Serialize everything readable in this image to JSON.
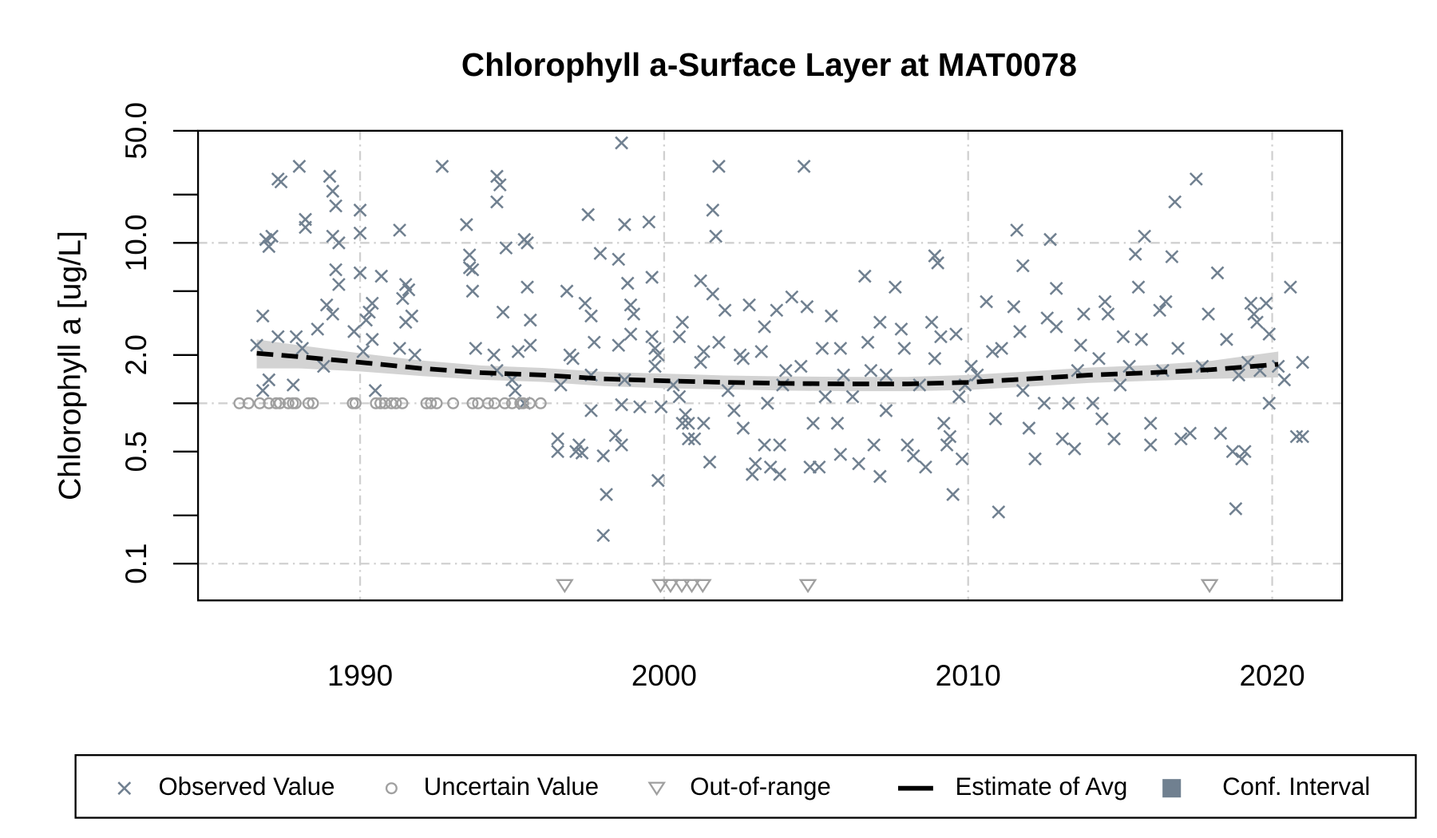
{
  "chart_data": {
    "type": "scatter",
    "title": "Chlorophyll a-Surface Layer at MAT0078",
    "ylabel": "Chlorophyll a [ug/L]",
    "log_y": true,
    "xlim": [
      1984.67,
      2022.3
    ],
    "ylim": [
      0.059,
      50
    ],
    "xticks": [
      1990,
      2000,
      2010,
      2020
    ],
    "yticks": [
      0.1,
      {
        "value": 0.2,
        "label": null
      },
      0.5,
      {
        "value": 1,
        "label": null
      },
      {
        "value": 2,
        "label": "2.0"
      },
      {
        "value": 5,
        "label": null
      },
      {
        "value": 10,
        "label": "10.0"
      },
      {
        "value": 20,
        "label": null
      },
      {
        "value": 50,
        "label": "50.0"
      }
    ],
    "ygrid": [
      0.1,
      1,
      10
    ],
    "xgrid": true,
    "series": [
      {
        "name": "Observed Value",
        "marker": "x",
        "color": "#708090",
        "x": [
          1986.6,
          1986.8,
          1986.9,
          1987.0,
          1987.1,
          1986.8,
          1987.0,
          1987.3,
          1987.3,
          1987.4,
          1988.0,
          1988.2,
          1988.2,
          1987.9,
          1987.8,
          1988.1,
          1988.6,
          1988.8,
          1989.0,
          1989.1,
          1989.2,
          1989.1,
          1989.3,
          1989.2,
          1989.3,
          1988.9,
          1989.1,
          1989.8,
          1990.0,
          1990.0,
          1990.0,
          1990.2,
          1990.3,
          1990.4,
          1990.4,
          1990.1,
          1990.7,
          1990.5,
          1991.3,
          1991.5,
          1991.6,
          1991.4,
          1991.5,
          1991.7,
          1991.3,
          1991.8,
          1992.7,
          1993.5,
          1993.6,
          1993.6,
          1993.7,
          1993.7,
          1993.8,
          1994.5,
          1994.6,
          1994.5,
          1994.8,
          1994.7,
          1994.4,
          1994.5,
          1995.4,
          1995.5,
          1995.5,
          1995.6,
          1995.6,
          1995.2,
          1995.0,
          1995.1,
          1995.4,
          1996.5,
          1996.5,
          1996.8,
          1996.9,
          1996.6,
          1997.0,
          1997.2,
          1997.3,
          1997.1,
          1997.5,
          1997.4,
          1997.6,
          1997.9,
          1997.7,
          1997.6,
          1997.6,
          1998.0,
          1998.0,
          1998.1,
          1998.4,
          1998.6,
          1998.5,
          1998.5,
          1998.7,
          1998.6,
          1998.6,
          1998.7,
          1998.8,
          1998.9,
          1999.0,
          1998.9,
          1999.2,
          1999.5,
          1999.6,
          1999.6,
          1999.7,
          1999.8,
          1999.7,
          1999.9,
          1999.8,
          2000.3,
          2000.5,
          2000.6,
          2000.7,
          2000.8,
          2000.5,
          2000.6,
          2000.8,
          2001.0,
          2001.2,
          2001.3,
          2001.3,
          2001.5,
          2001.2,
          2001.6,
          2001.7,
          2001.8,
          2001.6,
          2001.8,
          2002.0,
          2002.1,
          2002.3,
          2002.5,
          2002.6,
          2002.8,
          2002.6,
          2002.9,
          2003.0,
          2003.2,
          2003.3,
          2003.3,
          2003.4,
          2003.5,
          2003.7,
          2003.8,
          2003.9,
          2003.8,
          2004.0,
          2004.2,
          2004.6,
          2004.7,
          2004.5,
          2004.8,
          2004.9,
          2005.1,
          2005.2,
          2005.3,
          2005.5,
          2005.7,
          2005.8,
          2005.9,
          2005.8,
          2006.2,
          2006.4,
          2006.6,
          2006.7,
          2006.8,
          2006.9,
          2007.1,
          2007.1,
          2007.3,
          2007.3,
          2007.6,
          2007.8,
          2007.9,
          2008.0,
          2008.2,
          2008.4,
          2008.6,
          2008.8,
          2008.9,
          2009.0,
          2008.9,
          2009.1,
          2009.2,
          2009.3,
          2009.4,
          2009.5,
          2009.6,
          2009.7,
          2009.8,
          2009.9,
          2010.1,
          2010.3,
          2010.6,
          2010.8,
          2010.9,
          2011.0,
          2011.1,
          2011.5,
          2011.7,
          2011.6,
          2011.8,
          2011.8,
          2012.0,
          2012.2,
          2012.5,
          2012.6,
          2012.7,
          2012.9,
          2012.9,
          2013.1,
          2013.3,
          2013.5,
          2013.6,
          2013.8,
          2013.7,
          2014.1,
          2014.3,
          2014.5,
          2014.6,
          2014.4,
          2014.8,
          2015.0,
          2015.1,
          2015.3,
          2015.5,
          2015.6,
          2015.8,
          2015.7,
          2016.0,
          2016.0,
          2016.3,
          2016.4,
          2016.5,
          2016.7,
          2016.8,
          2016.9,
          2017.0,
          2017.3,
          2017.5,
          2017.9,
          2017.7,
          2018.2,
          2018.3,
          2018.5,
          2018.7,
          2018.8,
          2018.9,
          2019.0,
          2019.1,
          2019.2,
          2019.3,
          2019.4,
          2019.5,
          2019.6,
          2019.8,
          2019.9,
          2019.9,
          2020.2,
          2020.4,
          2020.6,
          2020.8,
          2021.0,
          2021.0
        ],
        "values": [
          2.3,
          3.5,
          10.5,
          9.5,
          11,
          1.2,
          1.4,
          2.6,
          25,
          24,
          30,
          14,
          12.5,
          2.6,
          1.3,
          2.2,
          2.9,
          1.7,
          26,
          21,
          17,
          11,
          10,
          6.8,
          5.5,
          4.1,
          3.6,
          2.8,
          16,
          11.5,
          6.5,
          3.3,
          3.7,
          4.2,
          2.5,
          2.1,
          6.2,
          1.2,
          12,
          5.5,
          5.1,
          4.5,
          3.2,
          3.5,
          2.2,
          2.0,
          30,
          13,
          8.4,
          7,
          6.8,
          5,
          2.2,
          26,
          23,
          18,
          9.3,
          3.7,
          2.0,
          1.6,
          10.5,
          10.0,
          5.3,
          3.3,
          2.3,
          2.1,
          1.4,
          1.2,
          1.0,
          0.6,
          0.5,
          5,
          2.0,
          1.3,
          1.9,
          0.55,
          0.49,
          0.5,
          15,
          4.2,
          3.5,
          8.6,
          2.4,
          1.5,
          0.9,
          0.47,
          0.15,
          0.27,
          0.63,
          0.55,
          7.9,
          2.3,
          1.4,
          0.98,
          42,
          13,
          5.6,
          4.1,
          3.6,
          2.7,
          0.95,
          13.5,
          6.1,
          2.6,
          2.2,
          2.0,
          1.7,
          0.95,
          0.33,
          1.3,
          1.1,
          0.75,
          0.85,
          0.75,
          2.6,
          3.2,
          0.6,
          0.6,
          1.8,
          2.1,
          0.75,
          0.43,
          5.8,
          16,
          11,
          30,
          4.8,
          2.4,
          3.8,
          1.2,
          0.9,
          2.0,
          1.9,
          4.1,
          0.7,
          0.36,
          0.42,
          2.1,
          3.0,
          0.55,
          1.0,
          0.4,
          3.8,
          0.36,
          1.3,
          0.55,
          1.6,
          4.6,
          30,
          4.0,
          1.7,
          0.4,
          0.75,
          0.4,
          2.2,
          1.1,
          3.5,
          0.75,
          2.2,
          1.5,
          0.48,
          1.1,
          0.42,
          6.2,
          2.4,
          1.6,
          0.55,
          0.35,
          3.2,
          1.5,
          0.9,
          5.3,
          2.9,
          2.2,
          0.55,
          0.47,
          1.3,
          0.4,
          3.2,
          8.3,
          7.5,
          1.9,
          2.6,
          0.75,
          0.55,
          0.62,
          0.27,
          2.7,
          1.1,
          0.45,
          1.3,
          1.7,
          1.5,
          4.3,
          2.1,
          0.8,
          0.21,
          2.2,
          4.0,
          2.8,
          12,
          7.2,
          1.2,
          0.7,
          0.45,
          1.0,
          3.4,
          10.5,
          5.2,
          3.0,
          0.6,
          1.0,
          0.52,
          1.6,
          3.6,
          2.3,
          1.0,
          1.9,
          4.3,
          3.6,
          0.8,
          0.6,
          1.3,
          2.6,
          1.7,
          8.5,
          5.3,
          11,
          2.5,
          0.75,
          0.55,
          3.8,
          1.6,
          4.3,
          8.2,
          18,
          2.2,
          0.6,
          0.65,
          25,
          3.6,
          1.7,
          6.5,
          0.65,
          2.5,
          0.5,
          0.22,
          1.5,
          0.45,
          0.5,
          1.8,
          4.2,
          3.6,
          3.2,
          1.6,
          4.2,
          2.7,
          1.0,
          1.7,
          1.4,
          5.3,
          0.62,
          0.62,
          1.8
        ]
      },
      {
        "name": "Uncertain Value",
        "marker": "circle",
        "color": "#a0a0a0",
        "x": [
          1986.03,
          1986.33,
          1986.7,
          1987.0,
          1987.24,
          1987.36,
          1987.64,
          1987.79,
          1987.88,
          1988.3,
          1988.45,
          1989.76,
          1989.85,
          1990.52,
          1990.67,
          1990.82,
          1991.03,
          1991.18,
          1991.39,
          1992.18,
          1992.33,
          1992.52,
          1993.06,
          1993.7,
          1993.88,
          1994.21,
          1994.42,
          1994.76,
          1995.0,
          1995.27,
          1995.36,
          1995.58,
          1995.94
        ],
        "values": [
          1,
          1,
          1,
          1,
          1,
          1,
          1,
          1,
          1,
          1,
          1,
          1,
          1,
          1,
          1,
          1,
          1,
          1,
          1,
          1,
          1,
          1,
          1,
          1,
          1,
          1,
          1,
          1,
          1,
          1,
          1,
          1,
          1
        ]
      },
      {
        "name": "Out-of-range",
        "marker": "triangle",
        "color": "#a0a0a0",
        "x": [
          1996.73,
          1999.88,
          2000.21,
          2000.58,
          2000.91,
          2001.27,
          2004.73,
          2017.94
        ],
        "values": [
          0.073,
          0.073,
          0.073,
          0.073,
          0.073,
          0.073,
          0.073,
          0.073
        ]
      },
      {
        "name": "Estimate of Avg",
        "marker": "dashed-line",
        "color": "#000000",
        "x": [
          1986.6,
          1988,
          1990,
          1992,
          1994,
          1996,
          1998,
          2000,
          2002,
          2004,
          2006,
          2008,
          2010,
          2012,
          2014,
          2016,
          2018,
          2020.2
        ],
        "values": [
          2.05,
          1.95,
          1.8,
          1.65,
          1.55,
          1.5,
          1.42,
          1.38,
          1.35,
          1.33,
          1.32,
          1.32,
          1.35,
          1.42,
          1.5,
          1.55,
          1.62,
          1.75
        ]
      },
      {
        "name": "Conf. Interval",
        "marker": "band",
        "color": "#d3d3d3",
        "legend_color": "#708090",
        "x": [
          1986.6,
          1988,
          1990,
          1992,
          1994,
          1996,
          1998,
          2000,
          2002,
          2004,
          2006,
          2008,
          2010,
          2012,
          2014,
          2016,
          2018,
          2020.2
        ],
        "lower": [
          1.65,
          1.65,
          1.58,
          1.48,
          1.4,
          1.36,
          1.28,
          1.24,
          1.22,
          1.2,
          1.19,
          1.19,
          1.21,
          1.27,
          1.34,
          1.38,
          1.42,
          1.45
        ],
        "upper": [
          2.5,
          2.3,
          2.05,
          1.85,
          1.72,
          1.66,
          1.57,
          1.53,
          1.49,
          1.47,
          1.46,
          1.46,
          1.5,
          1.58,
          1.67,
          1.73,
          1.84,
          2.1
        ]
      }
    ]
  }
}
